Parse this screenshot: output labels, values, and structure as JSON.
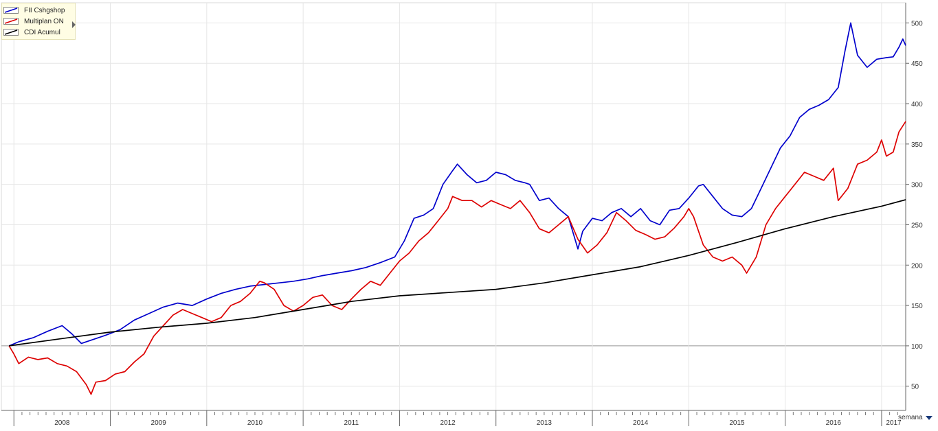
{
  "legend": {
    "items": [
      {
        "label": "FII Cshgshop",
        "color": "#0000cc"
      },
      {
        "label": "Multiplan ON",
        "color": "#dd0000"
      },
      {
        "label": "CDI Acumul",
        "color": "#000000"
      }
    ]
  },
  "period_selector": {
    "label": "semana"
  },
  "chart_data": {
    "type": "line",
    "title": "",
    "xlabel": "",
    "ylabel": "",
    "x_range": [
      2007.87,
      2017.25
    ],
    "ylim": [
      20,
      525
    ],
    "y_ticks": [
      50,
      100,
      150,
      200,
      250,
      300,
      350,
      400,
      450,
      500
    ],
    "x_tick_labels": [
      "2008",
      "2009",
      "2010",
      "2011",
      "2012",
      "2013",
      "2014",
      "2015",
      "2016",
      "2017"
    ],
    "baseline": 100,
    "grid": true,
    "legend_position": "top-left",
    "series": [
      {
        "name": "FII Cshgshop",
        "color": "#0000cc",
        "points": [
          [
            2007.95,
            100
          ],
          [
            2008.05,
            105
          ],
          [
            2008.2,
            110
          ],
          [
            2008.35,
            118
          ],
          [
            2008.5,
            125
          ],
          [
            2008.6,
            115
          ],
          [
            2008.7,
            103
          ],
          [
            2008.8,
            107
          ],
          [
            2008.95,
            113
          ],
          [
            2009.1,
            120
          ],
          [
            2009.25,
            132
          ],
          [
            2009.4,
            140
          ],
          [
            2009.55,
            148
          ],
          [
            2009.7,
            153
          ],
          [
            2009.85,
            150
          ],
          [
            2010.0,
            158
          ],
          [
            2010.15,
            165
          ],
          [
            2010.3,
            170
          ],
          [
            2010.45,
            174
          ],
          [
            2010.6,
            176
          ],
          [
            2010.75,
            178
          ],
          [
            2010.9,
            180
          ],
          [
            2011.05,
            183
          ],
          [
            2011.2,
            187
          ],
          [
            2011.35,
            190
          ],
          [
            2011.5,
            193
          ],
          [
            2011.65,
            197
          ],
          [
            2011.8,
            203
          ],
          [
            2011.95,
            210
          ],
          [
            2012.05,
            230
          ],
          [
            2012.15,
            258
          ],
          [
            2012.25,
            262
          ],
          [
            2012.35,
            270
          ],
          [
            2012.45,
            300
          ],
          [
            2012.55,
            317
          ],
          [
            2012.6,
            325
          ],
          [
            2012.7,
            312
          ],
          [
            2012.8,
            302
          ],
          [
            2012.9,
            305
          ],
          [
            2013.0,
            315
          ],
          [
            2013.1,
            312
          ],
          [
            2013.2,
            305
          ],
          [
            2013.3,
            302
          ],
          [
            2013.35,
            300
          ],
          [
            2013.45,
            280
          ],
          [
            2013.55,
            283
          ],
          [
            2013.65,
            270
          ],
          [
            2013.75,
            260
          ],
          [
            2013.8,
            240
          ],
          [
            2013.85,
            220
          ],
          [
            2013.9,
            242
          ],
          [
            2014.0,
            258
          ],
          [
            2014.1,
            255
          ],
          [
            2014.2,
            265
          ],
          [
            2014.3,
            270
          ],
          [
            2014.4,
            260
          ],
          [
            2014.5,
            270
          ],
          [
            2014.6,
            255
          ],
          [
            2014.7,
            250
          ],
          [
            2014.8,
            268
          ],
          [
            2014.9,
            270
          ],
          [
            2015.0,
            283
          ],
          [
            2015.1,
            298
          ],
          [
            2015.15,
            300
          ],
          [
            2015.25,
            285
          ],
          [
            2015.35,
            270
          ],
          [
            2015.45,
            262
          ],
          [
            2015.55,
            260
          ],
          [
            2015.65,
            270
          ],
          [
            2015.75,
            295
          ],
          [
            2015.85,
            320
          ],
          [
            2015.95,
            345
          ],
          [
            2016.05,
            360
          ],
          [
            2016.15,
            383
          ],
          [
            2016.25,
            393
          ],
          [
            2016.35,
            398
          ],
          [
            2016.45,
            405
          ],
          [
            2016.55,
            420
          ],
          [
            2016.62,
            465
          ],
          [
            2016.68,
            500
          ],
          [
            2016.75,
            460
          ],
          [
            2016.85,
            445
          ],
          [
            2016.95,
            455
          ],
          [
            2017.05,
            457
          ],
          [
            2017.12,
            458
          ],
          [
            2017.18,
            470
          ],
          [
            2017.22,
            480
          ],
          [
            2017.25,
            472
          ]
        ]
      },
      {
        "name": "Multiplan ON",
        "color": "#dd0000",
        "points": [
          [
            2007.95,
            100
          ],
          [
            2008.0,
            90
          ],
          [
            2008.05,
            78
          ],
          [
            2008.15,
            86
          ],
          [
            2008.25,
            83
          ],
          [
            2008.35,
            85
          ],
          [
            2008.45,
            78
          ],
          [
            2008.55,
            75
          ],
          [
            2008.65,
            68
          ],
          [
            2008.75,
            52
          ],
          [
            2008.8,
            40
          ],
          [
            2008.85,
            55
          ],
          [
            2008.95,
            57
          ],
          [
            2009.05,
            65
          ],
          [
            2009.15,
            68
          ],
          [
            2009.25,
            80
          ],
          [
            2009.35,
            90
          ],
          [
            2009.45,
            112
          ],
          [
            2009.55,
            125
          ],
          [
            2009.65,
            138
          ],
          [
            2009.75,
            145
          ],
          [
            2009.85,
            140
          ],
          [
            2009.95,
            135
          ],
          [
            2010.05,
            130
          ],
          [
            2010.15,
            135
          ],
          [
            2010.25,
            150
          ],
          [
            2010.35,
            155
          ],
          [
            2010.45,
            165
          ],
          [
            2010.55,
            180
          ],
          [
            2010.6,
            178
          ],
          [
            2010.7,
            170
          ],
          [
            2010.8,
            150
          ],
          [
            2010.9,
            143
          ],
          [
            2011.0,
            150
          ],
          [
            2011.1,
            160
          ],
          [
            2011.2,
            163
          ],
          [
            2011.3,
            150
          ],
          [
            2011.4,
            145
          ],
          [
            2011.5,
            158
          ],
          [
            2011.6,
            170
          ],
          [
            2011.7,
            180
          ],
          [
            2011.8,
            175
          ],
          [
            2011.9,
            190
          ],
          [
            2012.0,
            205
          ],
          [
            2012.1,
            215
          ],
          [
            2012.2,
            230
          ],
          [
            2012.3,
            240
          ],
          [
            2012.4,
            255
          ],
          [
            2012.5,
            270
          ],
          [
            2012.55,
            285
          ],
          [
            2012.65,
            280
          ],
          [
            2012.75,
            280
          ],
          [
            2012.85,
            272
          ],
          [
            2012.95,
            280
          ],
          [
            2013.05,
            275
          ],
          [
            2013.15,
            270
          ],
          [
            2013.25,
            280
          ],
          [
            2013.35,
            265
          ],
          [
            2013.45,
            245
          ],
          [
            2013.55,
            240
          ],
          [
            2013.65,
            250
          ],
          [
            2013.75,
            260
          ],
          [
            2013.85,
            232
          ],
          [
            2013.95,
            215
          ],
          [
            2014.05,
            225
          ],
          [
            2014.15,
            240
          ],
          [
            2014.25,
            265
          ],
          [
            2014.35,
            255
          ],
          [
            2014.45,
            243
          ],
          [
            2014.55,
            238
          ],
          [
            2014.65,
            232
          ],
          [
            2014.75,
            235
          ],
          [
            2014.85,
            246
          ],
          [
            2014.95,
            260
          ],
          [
            2015.0,
            270
          ],
          [
            2015.05,
            260
          ],
          [
            2015.15,
            225
          ],
          [
            2015.25,
            210
          ],
          [
            2015.35,
            205
          ],
          [
            2015.45,
            210
          ],
          [
            2015.55,
            200
          ],
          [
            2015.6,
            190
          ],
          [
            2015.7,
            210
          ],
          [
            2015.8,
            250
          ],
          [
            2015.9,
            270
          ],
          [
            2016.0,
            285
          ],
          [
            2016.1,
            300
          ],
          [
            2016.2,
            315
          ],
          [
            2016.3,
            310
          ],
          [
            2016.4,
            305
          ],
          [
            2016.5,
            320
          ],
          [
            2016.55,
            280
          ],
          [
            2016.65,
            295
          ],
          [
            2016.75,
            325
          ],
          [
            2016.85,
            330
          ],
          [
            2016.95,
            340
          ],
          [
            2017.0,
            355
          ],
          [
            2017.05,
            335
          ],
          [
            2017.12,
            340
          ],
          [
            2017.18,
            365
          ],
          [
            2017.25,
            378
          ]
        ]
      },
      {
        "name": "CDI Acumul",
        "color": "#000000",
        "points": [
          [
            2007.95,
            100
          ],
          [
            2008.5,
            109
          ],
          [
            2009.0,
            117
          ],
          [
            2009.5,
            123
          ],
          [
            2010.0,
            128
          ],
          [
            2010.5,
            135
          ],
          [
            2011.0,
            145
          ],
          [
            2011.5,
            155
          ],
          [
            2012.0,
            162
          ],
          [
            2012.5,
            166
          ],
          [
            2013.0,
            170
          ],
          [
            2013.5,
            178
          ],
          [
            2014.0,
            188
          ],
          [
            2014.5,
            198
          ],
          [
            2015.0,
            212
          ],
          [
            2015.5,
            228
          ],
          [
            2016.0,
            245
          ],
          [
            2016.5,
            260
          ],
          [
            2017.0,
            273
          ],
          [
            2017.25,
            281
          ]
        ]
      }
    ]
  }
}
